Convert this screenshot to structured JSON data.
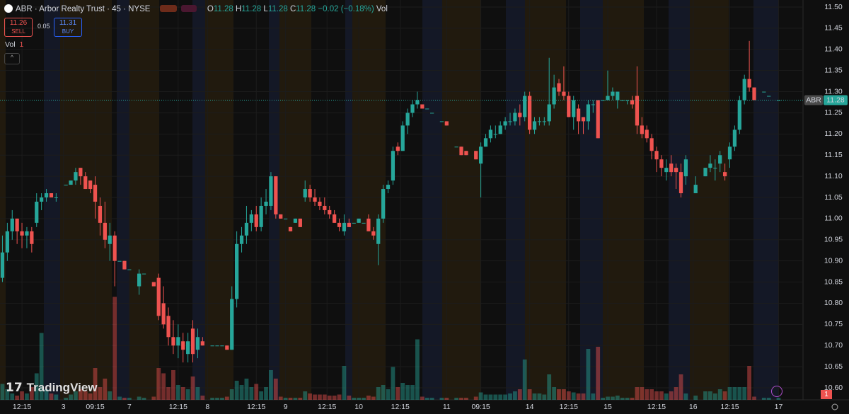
{
  "header": {
    "title": "ABR · Arbor Realty Trust · 45 · NYSE",
    "ohlc": [
      {
        "label": "O",
        "value": 11.28
      },
      {
        "label": "H",
        "value": 11.28
      },
      {
        "label": "L",
        "value": 11.28
      },
      {
        "label": "C",
        "value": 11.28
      }
    ],
    "change": "−0.02 (−0.18%)",
    "vol_label": "Vol"
  },
  "trade": {
    "sell_price": 11.26,
    "sell_label": "SELL",
    "spread": 0.05,
    "buy_price": 11.31,
    "buy_label": "BUY"
  },
  "volume_legend": {
    "label": "Vol",
    "value": 1
  },
  "brand": "TradingView",
  "badge": 1,
  "chart_data": {
    "type": "candlestick",
    "symbol": "ABR",
    "last_price": 11.28,
    "up_color": "#26a69a",
    "down_color": "#ef5350",
    "ylim": [
      10.5716,
      11.5167
    ],
    "yticks": [
      {
        "value": 11.5,
        "label": "11.50"
      },
      {
        "value": 11.45,
        "label": "11.45"
      },
      {
        "value": 11.4,
        "label": "11.40"
      },
      {
        "value": 11.35,
        "label": "11.35"
      },
      {
        "value": 11.3,
        "label": "11.30"
      },
      {
        "value": 11.25,
        "label": "11.25"
      },
      {
        "value": 11.2,
        "label": "11.20"
      },
      {
        "value": 11.15,
        "label": "11.15"
      },
      {
        "value": 11.1,
        "label": "11.10"
      },
      {
        "value": 11.05,
        "label": "11.05"
      },
      {
        "value": 11.0,
        "label": "11.00"
      },
      {
        "value": 10.95,
        "label": "10.95"
      },
      {
        "value": 10.9,
        "label": "10.90"
      },
      {
        "value": 10.85,
        "label": "10.85"
      },
      {
        "value": 10.8,
        "label": "10.80"
      },
      {
        "value": 10.75,
        "label": "10.75"
      },
      {
        "value": 10.7,
        "label": "10.70"
      },
      {
        "value": 10.65,
        "label": "10.65"
      },
      {
        "value": 10.6,
        "label": "10.60"
      }
    ],
    "xlim": [
      -0.5,
      164
    ],
    "xticks": [
      {
        "value": 4,
        "label": "12:15"
      },
      {
        "value": 12.5,
        "label": "3"
      },
      {
        "value": 19,
        "label": "09:15"
      },
      {
        "value": 26,
        "label": "7"
      },
      {
        "value": 36,
        "label": "12:15"
      },
      {
        "value": 42,
        "label": "8"
      },
      {
        "value": 52,
        "label": "12:15"
      },
      {
        "value": 58,
        "label": "9"
      },
      {
        "value": 66.5,
        "label": "12:15"
      },
      {
        "value": 73,
        "label": "10"
      },
      {
        "value": 81.5,
        "label": "12:15"
      },
      {
        "value": 91,
        "label": "11"
      },
      {
        "value": 98,
        "label": "09:15"
      },
      {
        "value": 108,
        "label": "14"
      },
      {
        "value": 116,
        "label": "12:15"
      },
      {
        "value": 124,
        "label": "15"
      },
      {
        "value": 134,
        "label": "12:15"
      },
      {
        "value": 141.5,
        "label": "16"
      },
      {
        "value": 149,
        "label": "12:15"
      },
      {
        "value": 159,
        "label": "17"
      }
    ],
    "open": [
      10.86,
      10.92,
      10.97,
      11.0,
      10.97,
      10.96,
      10.97,
      10.99,
      11.04,
      11.05,
      11.06,
      11.05,
      null,
      11.08,
      11.08,
      11.09,
      11.12,
      11.1,
      11.09,
      11.08,
      11.03,
      10.99,
      10.94,
      10.96,
      10.9,
      10.9,
      10.88,
      null,
      10.84,
      10.87,
      null,
      10.85,
      10.86,
      10.8,
      10.77,
      10.72,
      10.7,
      10.71,
      10.68,
      10.74,
      10.69,
      10.71,
      null,
      10.7,
      10.7,
      10.7,
      10.7,
      10.69,
      10.81,
      10.94,
      10.96,
      10.99,
      11.01,
      10.98,
      11.03,
      11.03,
      11.1,
      11.01,
      11.0,
      10.98,
      10.99,
      11.0,
      11.05,
      11.07,
      11.05,
      11.04,
      11.03,
      11.02,
      11.01,
      10.99,
      10.97,
      10.99,
      10.99,
      10.99,
      10.99,
      11.0,
      10.97,
      10.94,
      11.0,
      11.07,
      11.09,
      11.17,
      11.16,
      11.22,
      11.25,
      11.27,
      11.27,
      11.26,
      11.25,
      null,
      11.23,
      11.23,
      null,
      11.17,
      11.17,
      11.16,
      null,
      11.16,
      11.13,
      11.17,
      11.19,
      11.2,
      11.2,
      11.22,
      11.23,
      11.23,
      11.25,
      11.24,
      11.29,
      11.21,
      11.23,
      11.23,
      11.23,
      11.27,
      11.32,
      11.3,
      11.29,
      11.24,
      11.26,
      11.24,
      11.23,
      11.27,
      11.28,
      11.28,
      11.28,
      11.29,
      11.28,
      11.28,
      11.28,
      11.28,
      11.29,
      11.22,
      11.21,
      11.19,
      11.16,
      11.14,
      11.11,
      11.13,
      11.12,
      11.11,
      11.1,
      null,
      11.06,
      null,
      11.1,
      11.12,
      11.12,
      11.13,
      11.11,
      11.14,
      11.17,
      11.21,
      11.28,
      11.33,
      11.31,
      null,
      11.3,
      11.29,
      null,
      11.28
    ],
    "high": [
      10.96,
      10.99,
      11.02,
      11.0,
      10.99,
      10.98,
      10.98,
      11.06,
      11.06,
      11.07,
      11.06,
      11.06,
      null,
      11.08,
      11.09,
      11.12,
      11.12,
      11.11,
      11.09,
      11.1,
      11.05,
      11.04,
      10.99,
      10.97,
      10.9,
      10.9,
      10.88,
      null,
      10.88,
      10.87,
      null,
      10.85,
      10.87,
      10.84,
      10.79,
      10.76,
      10.75,
      10.73,
      10.73,
      10.76,
      10.74,
      10.72,
      null,
      10.7,
      10.7,
      10.7,
      10.7,
      10.84,
      10.97,
      10.98,
      11.03,
      11.02,
      11.03,
      11.05,
      11.07,
      11.11,
      11.1,
      11.01,
      11.0,
      10.98,
      11.0,
      11.0,
      11.09,
      11.08,
      11.07,
      11.05,
      11.05,
      11.03,
      11.02,
      11.0,
      11.01,
      11.0,
      10.99,
      11.0,
      10.99,
      11.01,
      10.98,
      11.01,
      11.08,
      11.09,
      11.17,
      11.18,
      11.23,
      11.26,
      11.28,
      11.3,
      11.27,
      11.26,
      11.25,
      null,
      11.23,
      11.23,
      null,
      11.17,
      11.17,
      11.16,
      null,
      11.16,
      11.18,
      11.2,
      11.22,
      11.22,
      11.23,
      11.24,
      11.25,
      11.26,
      11.27,
      11.3,
      11.3,
      11.24,
      11.24,
      11.24,
      11.38,
      11.34,
      11.33,
      11.36,
      11.3,
      11.29,
      11.27,
      11.24,
      11.28,
      11.28,
      11.28,
      11.28,
      11.35,
      11.31,
      11.3,
      11.28,
      11.28,
      11.29,
      11.36,
      11.24,
      11.22,
      11.2,
      11.17,
      11.15,
      11.14,
      11.15,
      11.13,
      11.13,
      11.15,
      null,
      11.1,
      null,
      11.12,
      11.15,
      11.14,
      11.16,
      11.13,
      11.18,
      11.22,
      11.29,
      11.34,
      11.42,
      11.31,
      null,
      11.3,
      11.29,
      null,
      11.28
    ],
    "low": [
      10.85,
      10.9,
      10.95,
      10.94,
      10.93,
      10.93,
      10.92,
      10.98,
      11.02,
      11.04,
      11.05,
      11.04,
      null,
      11.08,
      11.08,
      11.08,
      11.08,
      11.07,
      11.06,
      11.0,
      10.96,
      10.93,
      10.9,
      10.84,
      10.9,
      10.88,
      10.88,
      null,
      10.82,
      10.87,
      null,
      10.84,
      10.76,
      10.74,
      10.7,
      10.68,
      10.67,
      10.66,
      10.66,
      10.66,
      10.67,
      10.7,
      null,
      10.7,
      10.7,
      10.7,
      10.69,
      10.69,
      10.79,
      10.92,
      10.94,
      10.97,
      10.97,
      10.97,
      11.01,
      11.02,
      11.0,
      11.0,
      11.0,
      10.97,
      10.99,
      10.98,
      11.04,
      11.04,
      11.03,
      11.02,
      11.01,
      11.0,
      10.99,
      10.97,
      10.96,
      10.98,
      10.99,
      10.99,
      10.99,
      10.97,
      10.95,
      10.89,
      10.99,
      11.06,
      11.08,
      11.15,
      11.16,
      11.2,
      11.24,
      11.26,
      11.26,
      11.26,
      11.25,
      null,
      11.23,
      11.22,
      null,
      11.17,
      11.15,
      11.15,
      null,
      11.14,
      11.05,
      11.17,
      11.18,
      11.19,
      11.2,
      11.21,
      11.22,
      11.22,
      11.22,
      11.23,
      11.2,
      11.2,
      11.22,
      11.22,
      11.22,
      11.26,
      11.29,
      11.28,
      11.24,
      11.21,
      11.2,
      11.2,
      11.21,
      11.25,
      11.19,
      11.28,
      11.28,
      11.28,
      11.26,
      11.28,
      11.27,
      11.26,
      11.2,
      11.19,
      11.18,
      11.14,
      11.11,
      11.1,
      11.09,
      11.1,
      11.07,
      11.05,
      11.08,
      null,
      11.06,
      null,
      11.1,
      11.11,
      11.09,
      11.11,
      11.09,
      11.12,
      11.16,
      11.2,
      11.27,
      11.3,
      11.28,
      null,
      11.3,
      11.29,
      null,
      11.28
    ],
    "close": [
      10.92,
      10.97,
      11.0,
      10.97,
      10.96,
      10.97,
      10.94,
      11.04,
      11.05,
      11.06,
      11.05,
      11.05,
      null,
      11.08,
      11.09,
      11.11,
      11.1,
      11.07,
      11.07,
      11.04,
      10.99,
      10.95,
      10.96,
      10.9,
      10.9,
      10.88,
      10.88,
      null,
      10.87,
      10.87,
      null,
      10.84,
      10.77,
      10.75,
      10.72,
      10.7,
      10.72,
      10.69,
      10.71,
      10.68,
      10.72,
      10.7,
      null,
      10.7,
      10.7,
      10.7,
      10.69,
      10.81,
      10.94,
      10.96,
      10.99,
      11.01,
      10.98,
      11.03,
      11.04,
      11.1,
      11.01,
      11.0,
      11.0,
      10.97,
      11.0,
      10.98,
      11.07,
      11.05,
      11.04,
      11.03,
      11.02,
      11.01,
      10.99,
      10.98,
      10.99,
      10.98,
      10.99,
      11.0,
      10.99,
      10.97,
      10.96,
      11.0,
      11.07,
      11.08,
      11.16,
      11.16,
      11.22,
      11.25,
      11.27,
      11.28,
      11.26,
      11.26,
      11.25,
      null,
      11.23,
      11.22,
      null,
      11.17,
      11.15,
      11.15,
      null,
      11.14,
      11.17,
      11.19,
      11.21,
      11.2,
      11.22,
      11.23,
      11.23,
      11.25,
      11.24,
      11.29,
      11.21,
      11.23,
      11.23,
      11.23,
      11.27,
      11.31,
      11.3,
      11.29,
      11.24,
      11.28,
      11.23,
      11.23,
      11.27,
      11.27,
      11.19,
      11.28,
      11.29,
      11.3,
      11.3,
      11.28,
      11.28,
      11.27,
      11.22,
      11.2,
      11.19,
      11.16,
      11.14,
      11.12,
      11.12,
      11.11,
      11.11,
      11.06,
      11.14,
      null,
      11.08,
      null,
      11.12,
      11.13,
      11.12,
      11.15,
      11.1,
      11.17,
      11.21,
      11.28,
      11.33,
      11.31,
      11.28,
      null,
      11.3,
      11.29,
      null,
      11.28
    ],
    "vlim": [
      0,
      100
    ],
    "volume": [
      15,
      10,
      6,
      4,
      8,
      6,
      12,
      25,
      63,
      10,
      6,
      5,
      0,
      2,
      5,
      8,
      10,
      8,
      6,
      30,
      12,
      20,
      8,
      97,
      3,
      2,
      2,
      0,
      3,
      2,
      0,
      3,
      30,
      25,
      12,
      28,
      14,
      12,
      10,
      22,
      12,
      4,
      0,
      2,
      2,
      2,
      3,
      10,
      18,
      14,
      20,
      12,
      15,
      8,
      12,
      28,
      20,
      3,
      2,
      2,
      2,
      2,
      8,
      6,
      5,
      5,
      5,
      4,
      4,
      5,
      32,
      4,
      2,
      2,
      2,
      4,
      3,
      12,
      14,
      10,
      31,
      12,
      16,
      14,
      14,
      57,
      3,
      2,
      2,
      0,
      2,
      2,
      0,
      2,
      2,
      2,
      0,
      3,
      7,
      5,
      5,
      5,
      5,
      5,
      6,
      8,
      10,
      38,
      10,
      6,
      6,
      5,
      24,
      12,
      10,
      10,
      8,
      7,
      6,
      6,
      48,
      6,
      50,
      2,
      3,
      3,
      4,
      2,
      2,
      2,
      12,
      12,
      10,
      10,
      8,
      8,
      6,
      8,
      12,
      24,
      6,
      0,
      4,
      0,
      8,
      8,
      6,
      10,
      8,
      12,
      12,
      12,
      12,
      32,
      3,
      0,
      2,
      2,
      0,
      2
    ]
  }
}
